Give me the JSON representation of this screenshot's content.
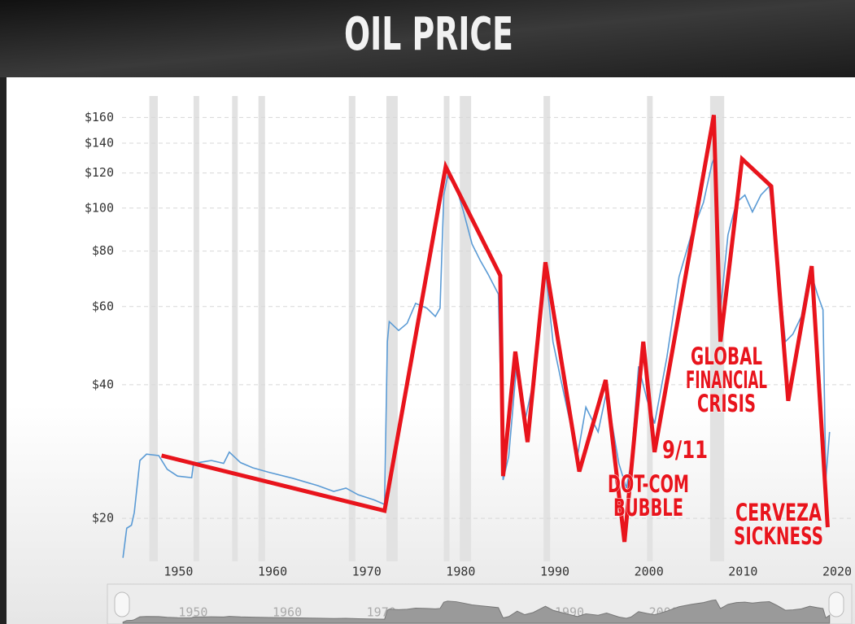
{
  "chart_data": {
    "type": "line",
    "title": "OIL PRICE",
    "log_scale": true,
    "grid": true,
    "xlim": [
      1944,
      2020
    ],
    "xticks": [
      1950,
      1960,
      1970,
      1980,
      1990,
      2000,
      2010,
      2020
    ],
    "ylim": [
      16,
      185
    ],
    "yticks": [
      {
        "value": 20,
        "label": "$20"
      },
      {
        "value": 40,
        "label": "$40"
      },
      {
        "value": 60,
        "label": "$60"
      },
      {
        "value": 80,
        "label": "$80"
      },
      {
        "value": 100,
        "label": "$100"
      },
      {
        "value": 120,
        "label": "$120"
      },
      {
        "value": 140,
        "label": "$140"
      },
      {
        "value": 160,
        "label": "$160"
      }
    ],
    "shaded_color": "#e2e2e2",
    "shaded_periods": [
      [
        1946.9,
        1947.8
      ],
      [
        1951.6,
        1952.2
      ],
      [
        1955.7,
        1956.3
      ],
      [
        1958.5,
        1959.2
      ],
      [
        1968.1,
        1968.8
      ],
      [
        1972.1,
        1973.3
      ],
      [
        1978.2,
        1978.8
      ],
      [
        1979.9,
        1981.1
      ],
      [
        1988.8,
        1989.5
      ],
      [
        1999.8,
        2000.4
      ],
      [
        2006.5,
        2008.0
      ]
    ],
    "series": [
      {
        "color": "#5b9bd5",
        "x": [
          1944.1,
          1944.5,
          1945,
          1945.3,
          1945.9,
          1946.6,
          1947.9,
          1948.8,
          1949.9,
          1951.4,
          1951.6,
          1953.5,
          1954.8,
          1955.4,
          1956.6,
          1957.9,
          1959.6,
          1962.2,
          1964.8,
          1966.5,
          1967.8,
          1969.1,
          1970.8,
          1971.9,
          1972.2,
          1972.4,
          1973.4,
          1974.3,
          1975.2,
          1976.4,
          1977.3,
          1977.8,
          1978.2,
          1978.6,
          1979.5,
          1980.3,
          1981.2,
          1982.1,
          1982.9,
          1984,
          1984.5,
          1985.1,
          1986,
          1986.8,
          1987.7,
          1989,
          1989.8,
          1990.7,
          1992.4,
          1993.3,
          1994.6,
          1995.5,
          1996.8,
          1997.6,
          1998.1,
          1998.9,
          1999.8,
          2000.6,
          2001.9,
          2003.2,
          2004.5,
          2005.8,
          2006.7,
          2007.1,
          2007.6,
          2008.4,
          2009.3,
          2010.2,
          2011,
          2011.9,
          2012.8,
          2013.6,
          2014.5,
          2015.3,
          2016.2,
          2017.1,
          2017.9,
          2018.5,
          2018.8,
          2019.2
        ],
        "values": [
          16.3,
          19,
          19.3,
          20.6,
          27,
          27.9,
          27.7,
          25.8,
          24.9,
          24.7,
          26.6,
          27,
          26.6,
          28.2,
          26.7,
          26,
          25.4,
          24.6,
          23.7,
          23,
          23.4,
          22.6,
          22,
          21.5,
          50,
          55.5,
          53,
          55,
          61,
          59.5,
          57,
          59.5,
          107,
          118,
          112,
          98,
          83,
          76,
          71,
          64,
          24.4,
          27.6,
          46,
          33,
          40.5,
          73,
          50,
          40.5,
          27.6,
          35.6,
          31.3,
          38.6,
          26.6,
          23.4,
          26.6,
          44,
          37,
          32.7,
          46,
          70,
          87,
          103,
          126,
          132,
          59,
          87,
          103,
          107,
          98,
          107,
          112,
          79,
          50,
          52,
          57,
          73,
          64,
          59,
          24.4,
          31.3
        ]
      },
      {
        "color": "#e8141c",
        "x": [
          1948.2,
          1971.9,
          1978.4,
          1984.2,
          1984.5,
          1985.8,
          1987.1,
          1989,
          1992.6,
          1995.4,
          1997.4,
          1999.4,
          2000.6,
          2006.9,
          2007.6,
          2009.9,
          2013,
          2014.8,
          2017.3,
          2019
        ],
        "values": [
          27.7,
          20.8,
          124,
          70.5,
          24.9,
          47.5,
          29.7,
          75.5,
          25.5,
          41,
          17.7,
          50,
          28.2,
          162,
          50,
          129,
          112,
          36.8,
          74,
          19.1
        ]
      }
    ],
    "annotations": [
      {
        "lines": [
          "GLOBAL",
          "FINANCIAL",
          "CRISIS"
        ]
      },
      {
        "lines": [
          "9/11"
        ]
      },
      {
        "lines": [
          "DOT-COM",
          "BUBBLE"
        ]
      },
      {
        "lines": [
          "CERVEZA",
          "SICKNESS"
        ]
      }
    ]
  }
}
